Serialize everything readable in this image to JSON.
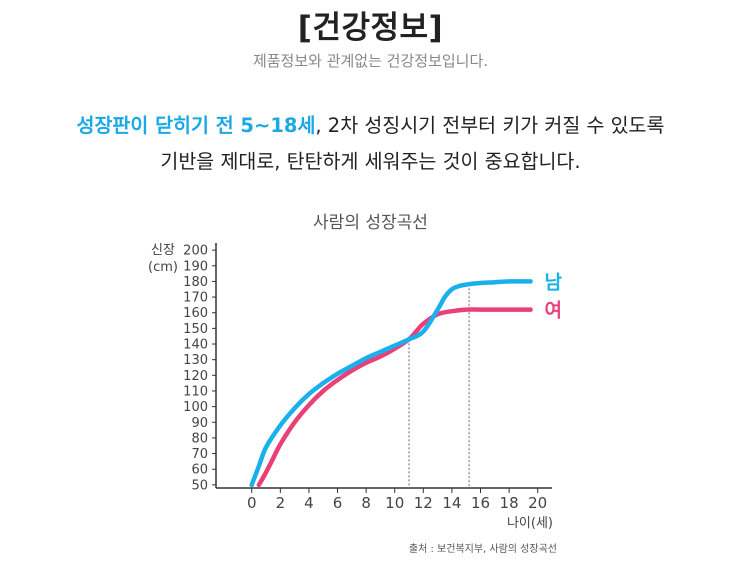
{
  "header": {
    "title": "[건강정보]",
    "subtitle": "제품정보와 관계없는 건강정보입니다."
  },
  "lead": {
    "highlight": "성장판이 닫히기 전 5~18세",
    "line1_rest": ", 2차 성징시기 전부터 키가 커질 수 있도록",
    "line2": "기반을 제대로, 탄탄하게 세워주는 것이 중요합니다."
  },
  "source": "출처 : 보건복지부, 사람의 성장곡선",
  "colors": {
    "male": "#1ab0ec",
    "female": "#ea3f77",
    "highlight": "#1ba9e6",
    "axis": "#333333"
  },
  "chart_data": {
    "type": "line",
    "title": "사람의 성장곡선",
    "ylabel_line1": "신장",
    "ylabel_line2": "(cm)",
    "xlabel": "나이(세)",
    "xlim": [
      -2.5,
      21
    ],
    "ylim": [
      48,
      202
    ],
    "xticks": [
      0,
      2,
      4,
      6,
      8,
      10,
      12,
      14,
      16,
      18,
      20
    ],
    "yticks": [
      50,
      60,
      70,
      80,
      90,
      100,
      110,
      120,
      130,
      140,
      150,
      160,
      170,
      180,
      190,
      200
    ],
    "grid": false,
    "reference_lines_x": [
      11,
      15.2
    ],
    "series": [
      {
        "name": "남",
        "color": "#1ab0ec",
        "x": [
          0,
          0.5,
          1,
          2,
          3,
          4,
          5,
          6,
          7,
          8,
          9,
          10,
          11,
          12,
          13,
          13.5,
          14,
          14.5,
          15,
          16,
          17,
          18,
          19,
          19.5
        ],
        "y": [
          50,
          62,
          74,
          88,
          99,
          108,
          115,
          121,
          126,
          131,
          135,
          139,
          143,
          148,
          162,
          170,
          175,
          177,
          178,
          179,
          179.5,
          180,
          180,
          180
        ]
      },
      {
        "name": "여",
        "color": "#ea3f77",
        "x": [
          0.5,
          1,
          1.5,
          2,
          3,
          4,
          5,
          6,
          7,
          8,
          9,
          10,
          11,
          11.5,
          12,
          13,
          14,
          15,
          16,
          17,
          18,
          19,
          19.5
        ],
        "y": [
          50,
          58,
          67,
          76,
          90,
          101,
          110,
          117,
          123,
          128,
          132,
          137,
          143,
          148,
          153,
          159,
          161,
          162,
          162,
          162,
          162,
          162,
          162
        ]
      }
    ]
  }
}
